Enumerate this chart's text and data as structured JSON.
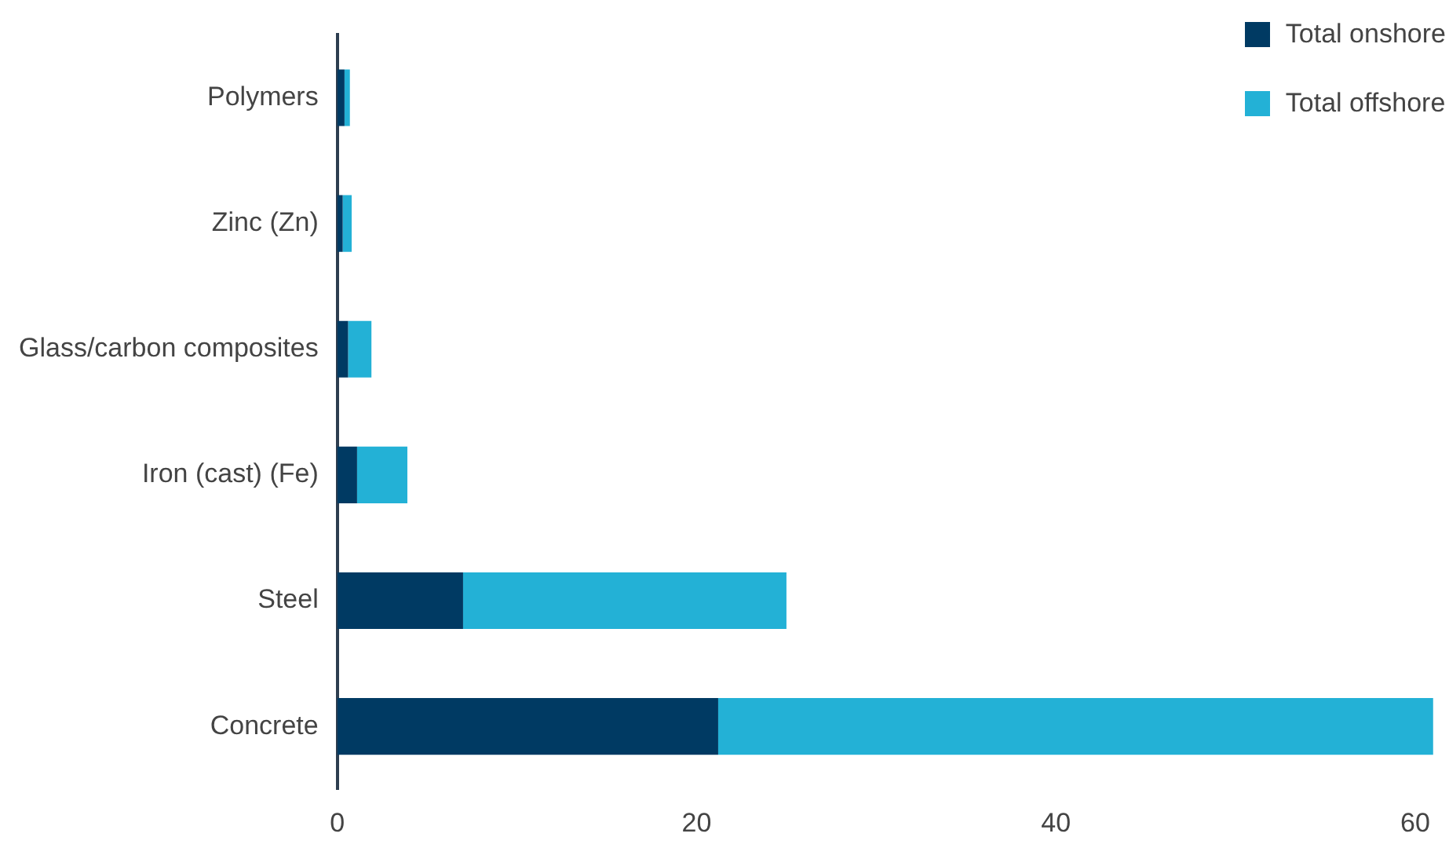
{
  "chart_data": {
    "type": "bar",
    "orientation": "horizontal",
    "stacked": true,
    "categories": [
      "Polymers",
      "Zinc (Zn)",
      "Glass/carbon composites",
      "Iron (cast) (Fe)",
      "Steel",
      "Concrete"
    ],
    "series": [
      {
        "name": "Total onshore",
        "color": "#003a63",
        "values": [
          0.4,
          0.3,
          0.6,
          1.1,
          7.0,
          21.2
        ]
      },
      {
        "name": "Total offshore",
        "color": "#23b1d6",
        "values": [
          0.3,
          0.5,
          1.3,
          2.8,
          18.0,
          39.8
        ]
      }
    ],
    "xlim": [
      0,
      61
    ],
    "xticks": [
      0,
      20,
      40,
      60
    ],
    "grid": false,
    "legend": "top right"
  }
}
